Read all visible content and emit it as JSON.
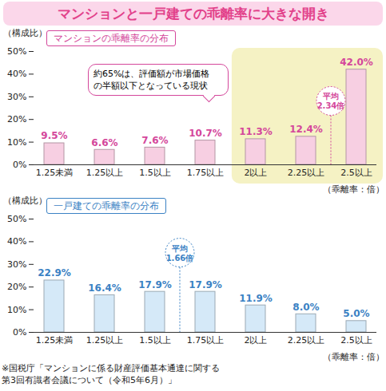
{
  "title": "マンションと一戸建ての乖離率に大きな開き",
  "note": "※国税庁「マンションに係る財産評価基本通達に関する\n第3回有識者会議について（令和5年6月）」",
  "chart_data": [
    {
      "type": "bar",
      "title": "マンションの乖離率の分布",
      "categories": [
        "1.25未満",
        "1.25以上",
        "1.5以上",
        "1.75以上",
        "2以上",
        "2.25以上",
        "2.5以上"
      ],
      "values": [
        9.5,
        6.6,
        7.6,
        10.7,
        11.3,
        12.4,
        42.0
      ],
      "value_labels": [
        "9.5%",
        "6.6%",
        "7.6%",
        "10.7%",
        "11.3%",
        "12.4%",
        "42.0%"
      ],
      "color": "#f7cfe2",
      "x_label": "（乖離率：倍）",
      "y_label": "（構成比）",
      "ylim": [
        0,
        50
      ],
      "yticks": [
        {
          "value": 0,
          "label": "0%"
        },
        {
          "value": 10,
          "label": "10%"
        },
        {
          "value": 20,
          "label": "20%"
        },
        {
          "value": 30,
          "label": "30%"
        },
        {
          "value": 40,
          "label": "40%"
        },
        {
          "value": 50,
          "label": "50%"
        }
      ],
      "grid": false,
      "data_labels": true,
      "annotations": [
        "約65%は、評価額が市場価格\nの半額以下となっている現状",
        "平均\n2.34倍"
      ]
    },
    {
      "type": "bar",
      "title": "一戸建ての乖離率の分布",
      "categories": [
        "1.25未満",
        "1.25以上",
        "1.5以上",
        "1.75以上",
        "2以上",
        "2.25以上",
        "2.5以上"
      ],
      "values": [
        22.9,
        16.4,
        17.9,
        17.9,
        11.9,
        8.0,
        5.0
      ],
      "value_labels": [
        "22.9%",
        "16.4%",
        "17.9%",
        "17.9%",
        "11.9%",
        "8.0%",
        "5.0%"
      ],
      "color": "#d5e9f8",
      "x_label": "（乖離率：倍）",
      "y_label": "（構成比）",
      "ylim": [
        0,
        50
      ],
      "yticks": [
        {
          "value": 0,
          "label": "0%"
        },
        {
          "value": 10,
          "label": "10%"
        },
        {
          "value": 20,
          "label": "20%"
        },
        {
          "value": 30,
          "label": "30%"
        },
        {
          "value": 40,
          "label": "40%"
        },
        {
          "value": 50,
          "label": "50%"
        }
      ],
      "grid": false,
      "data_labels": true,
      "annotations": [
        "平均\n1.66倍"
      ]
    }
  ]
}
